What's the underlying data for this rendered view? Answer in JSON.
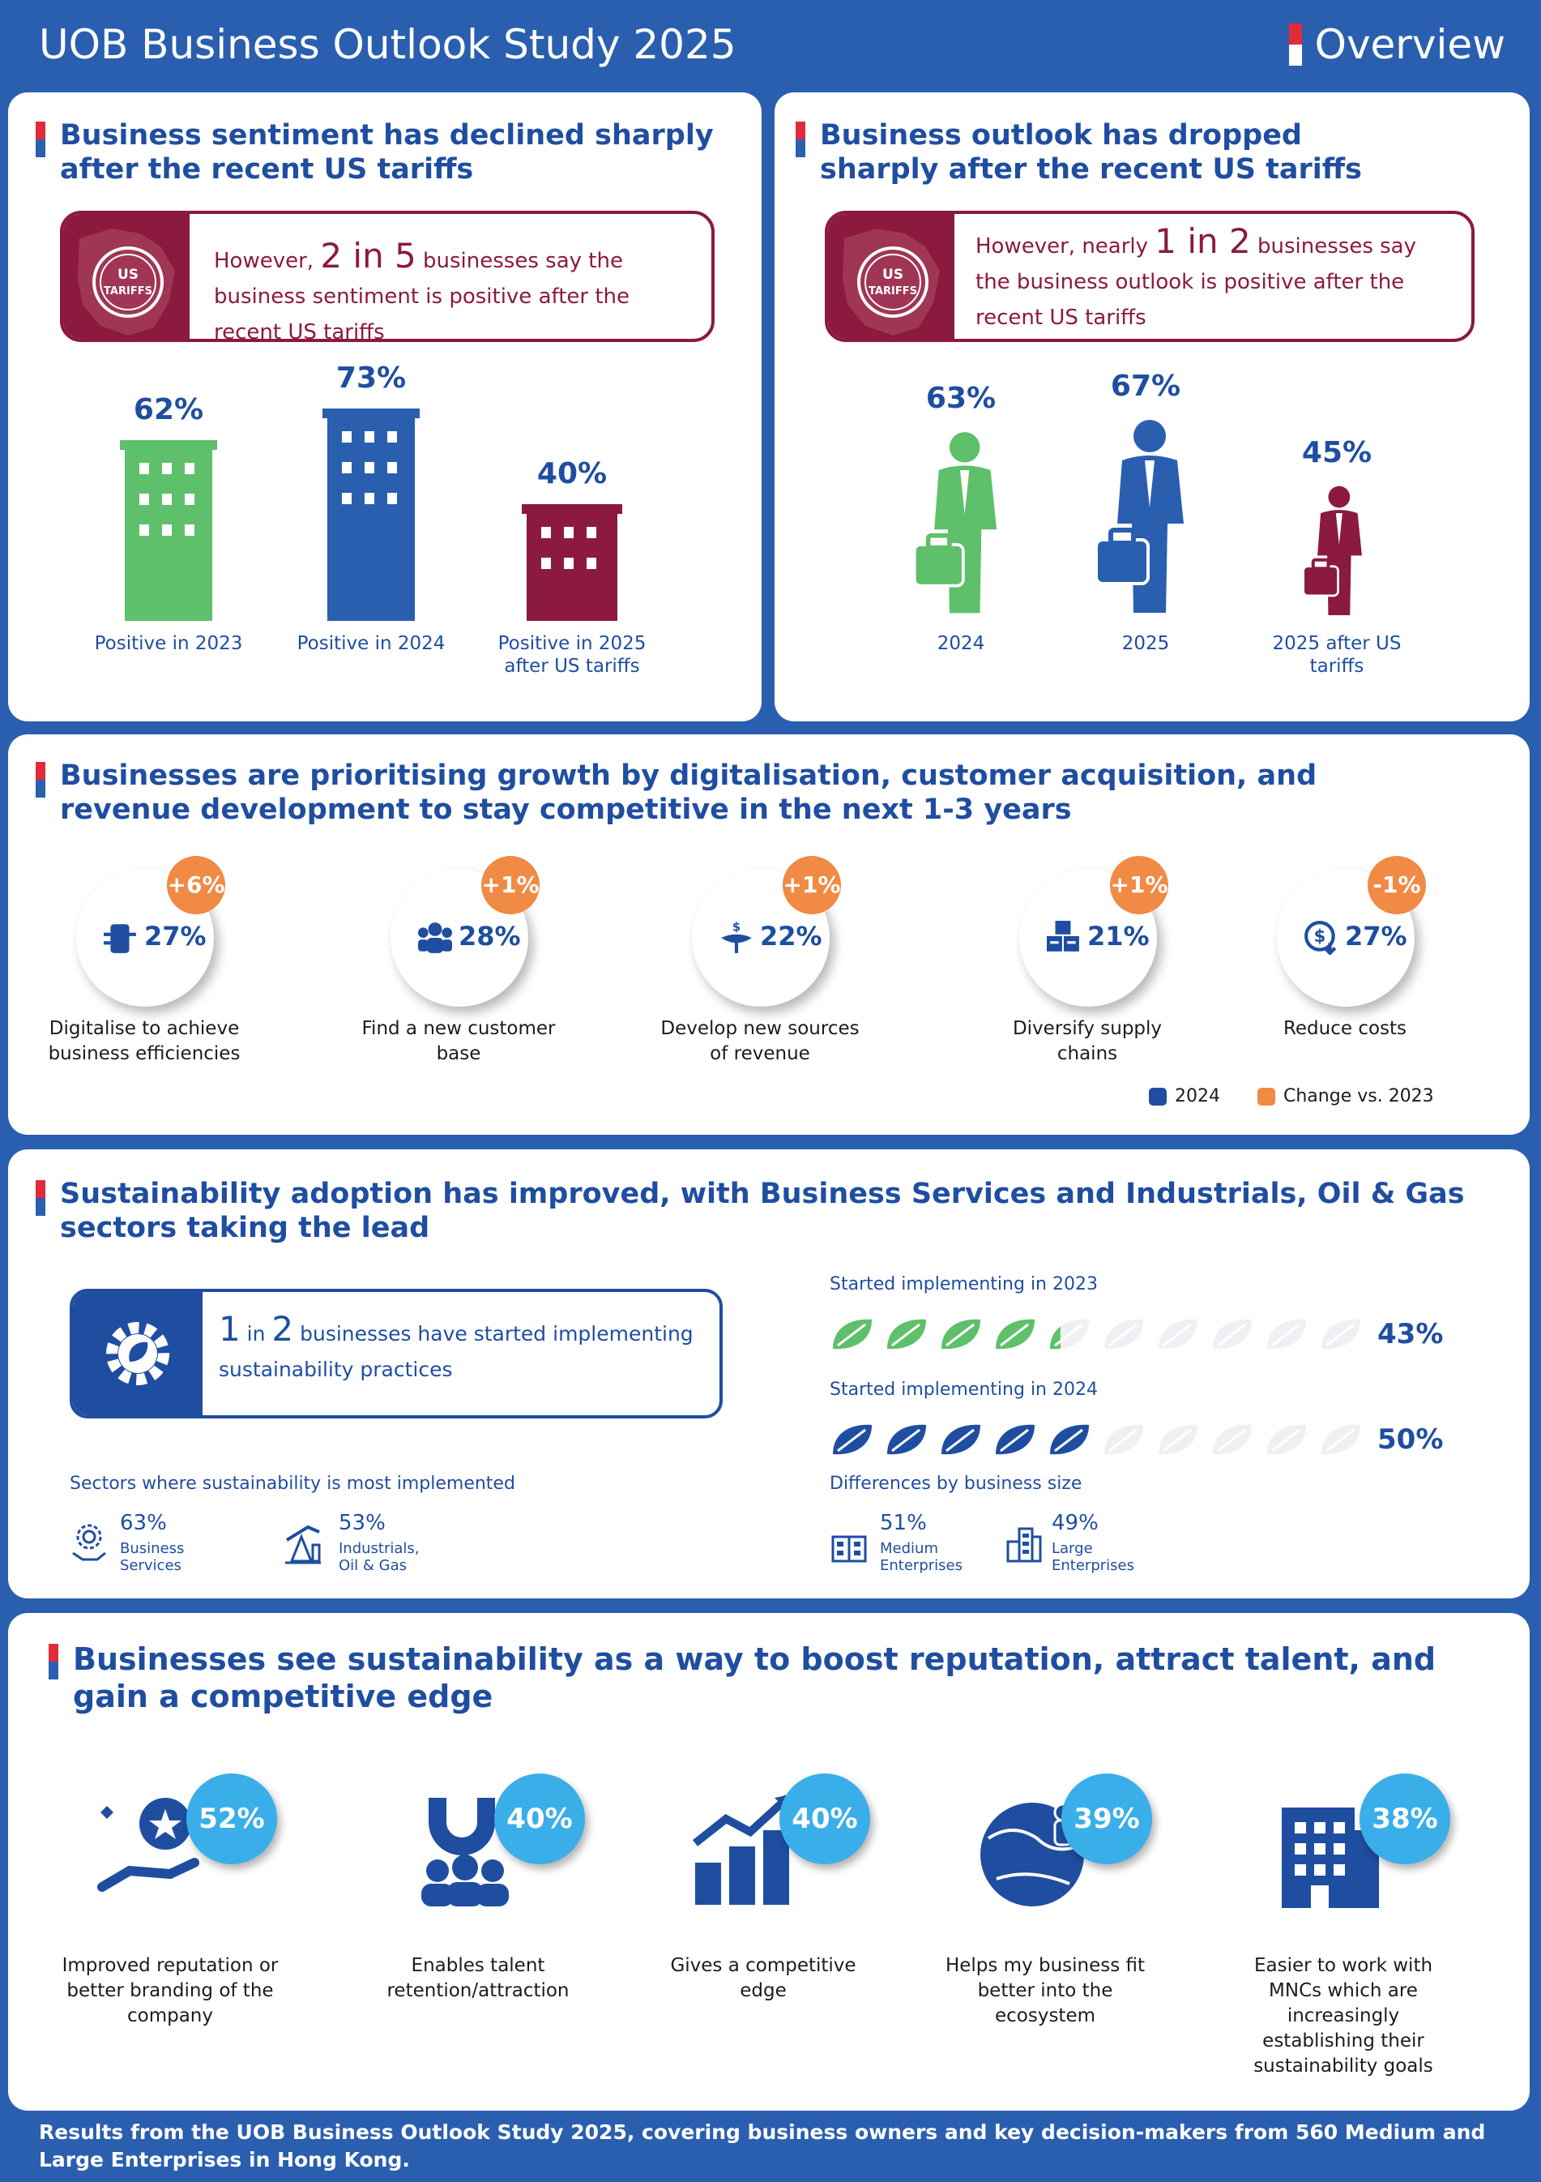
{
  "header": {
    "title": "UOB Business Outlook Study 2025",
    "tag": "Overview"
  },
  "sentiment": {
    "heading": "Business sentiment has declined sharply after the recent US tariffs",
    "badge": "US TARIFFS",
    "callout_pre": "However, ",
    "callout_big": "2 in 5",
    "callout_post": " businesses say the business sentiment is positive after the recent US tariffs",
    "bars": [
      {
        "value": "62%",
        "label": "Positive in 2023",
        "pct": 62,
        "color": "#5ec06a"
      },
      {
        "value": "73%",
        "label": "Positive in 2024",
        "pct": 73,
        "color": "#2a5fb0"
      },
      {
        "value": "40%",
        "label": "Positive in 2025 after US tariffs",
        "pct": 40,
        "color": "#8b1a3e"
      }
    ]
  },
  "outlook": {
    "heading": "Business outlook has dropped sharply after the recent US tariffs",
    "badge": "US TARIFFS",
    "callout_pre": "However, nearly ",
    "callout_big": "1 in 2",
    "callout_post": " businesses say the business outlook is positive after the recent US tariffs",
    "figures": [
      {
        "value": "63%",
        "label": "2024",
        "pct": 63,
        "color": "#5ec06a"
      },
      {
        "value": "67%",
        "label": "2025",
        "pct": 67,
        "color": "#2a5fb0"
      },
      {
        "value": "45%",
        "label": "2025 after US tariffs",
        "pct": 45,
        "color": "#8b1a3e"
      }
    ]
  },
  "growth": {
    "heading": "Businesses are prioritising growth by digitalisation, customer acquisition, and revenue development to stay competitive in the next 1-3 years",
    "items": [
      {
        "value": "27%",
        "change": "+6%",
        "label": "Digitalise to achieve business efficiencies",
        "icon": "digital-icon"
      },
      {
        "value": "28%",
        "change": "+1%",
        "label": "Find a new customer base",
        "icon": "people-icon"
      },
      {
        "value": "22%",
        "change": "+1%",
        "label": "Develop new sources of revenue",
        "icon": "plant-dollar-icon"
      },
      {
        "value": "21%",
        "change": "+1%",
        "label": "Diversify supply chains",
        "icon": "boxes-icon"
      },
      {
        "value": "27%",
        "change": "-1%",
        "label": "Reduce costs",
        "icon": "dollar-down-icon"
      }
    ],
    "legend": [
      {
        "label": "2024",
        "color": "#1f4ea1"
      },
      {
        "label": "Change vs. 2023",
        "color": "#f08a45"
      }
    ]
  },
  "sustainability": {
    "heading": "Sustainability adoption has improved, with Business Services and Industrials, Oil & Gas sectors taking the lead",
    "callout_n1": "1",
    "callout_in": " in ",
    "callout_n2": "2",
    "callout_text": " businesses have started implementing sustainability  practices",
    "sectors_title": "Sectors where sustainability is most implemented",
    "sectors": [
      {
        "value": "63%",
        "label": "Business Services"
      },
      {
        "value": "53%",
        "label": "Industrials, Oil & Gas"
      }
    ],
    "rows": [
      {
        "title": "Started implementing in 2023",
        "value": "43%",
        "pct": 43,
        "color": "#5ec06a"
      },
      {
        "title": "Started implementing in 2024",
        "value": "50%",
        "pct": 50,
        "color": "#1f4ea1"
      }
    ],
    "size_title": "Differences by business size",
    "sizes": [
      {
        "value": "51%",
        "label": "Medium Enterprises"
      },
      {
        "value": "49%",
        "label": "Large Enterprises"
      }
    ]
  },
  "benefits": {
    "heading": "Businesses see sustainability as a way to boost reputation, attract talent, and gain a competitive edge",
    "items": [
      {
        "value": "52%",
        "label": "Improved reputation or better branding of the company",
        "icon": "award-hand-icon"
      },
      {
        "value": "40%",
        "label": "Enables talent retention/attraction",
        "icon": "magnet-people-icon"
      },
      {
        "value": "40%",
        "label": "Gives a competitive edge",
        "icon": "growth-chart-icon"
      },
      {
        "value": "39%",
        "label": "Helps my business fit better into the ecosystem",
        "icon": "globe-person-icon"
      },
      {
        "value": "38%",
        "label": "Easier to work with MNCs which are increasingly establishing their sustainability goals",
        "icon": "office-building-icon"
      }
    ]
  },
  "footer": "Results from the UOB Business Outlook Study 2025, covering business owners and key decision-makers from 560 Medium and Large Enterprises in Hong Kong."
}
